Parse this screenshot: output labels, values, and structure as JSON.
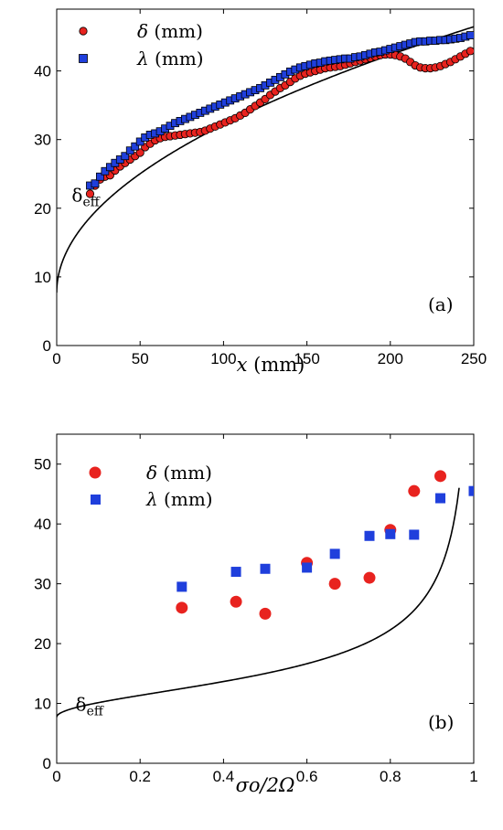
{
  "chart_data": [
    {
      "id": "a",
      "type": "scatter",
      "panel_label": "(a)",
      "xlabel_var": "x",
      "xlabel_unit": " (mm)",
      "ylabel": "",
      "xlim": [
        0,
        250
      ],
      "ylim": [
        0,
        49
      ],
      "xticks": [
        0,
        50,
        100,
        150,
        200,
        250
      ],
      "yticks": [
        0,
        10,
        20,
        30,
        40
      ],
      "grid": false,
      "legend": "top-left",
      "curve_label": {
        "main": "δ",
        "sub": "eff",
        "x": 9,
        "y": 21
      },
      "curve": {
        "name": "",
        "color": "#000000",
        "a": 7.7,
        "b": 2.45
      },
      "series": [
        {
          "name_sym": "δ",
          "name_unit": " (mm)",
          "marker": "circle",
          "color": "#e8231f",
          "x": [
            20,
            23,
            26,
            29,
            32,
            35,
            38,
            41,
            44,
            47,
            50,
            53,
            56,
            59,
            62,
            65,
            68,
            71,
            74,
            77,
            80,
            83,
            86,
            89,
            92,
            95,
            98,
            101,
            104,
            107,
            110,
            113,
            116,
            119,
            122,
            125,
            128,
            131,
            134,
            137,
            140,
            143,
            146,
            149,
            152,
            155,
            158,
            161,
            164,
            167,
            170,
            173,
            176,
            179,
            182,
            185,
            188,
            191,
            194,
            197,
            200,
            203,
            206,
            209,
            212,
            215,
            218,
            221,
            224,
            227,
            230,
            233,
            236,
            239,
            242,
            245,
            248
          ],
          "y": [
            22.1,
            23.3,
            24.2,
            24.6,
            24.8,
            25.5,
            26.1,
            26.6,
            27.1,
            27.6,
            28.1,
            28.9,
            29.4,
            29.9,
            30.2,
            30.4,
            30.5,
            30.6,
            30.7,
            30.8,
            30.9,
            31.0,
            31.1,
            31.3,
            31.6,
            31.9,
            32.2,
            32.5,
            32.8,
            33.1,
            33.5,
            33.9,
            34.4,
            34.9,
            35.4,
            35.9,
            36.5,
            37.0,
            37.5,
            37.9,
            38.4,
            38.9,
            39.3,
            39.6,
            39.8,
            40.0,
            40.2,
            40.4,
            40.5,
            40.6,
            40.7,
            40.9,
            41.1,
            41.3,
            41.5,
            41.7,
            41.9,
            42.1,
            42.3,
            42.4,
            42.4,
            42.3,
            42.1,
            41.8,
            41.3,
            40.8,
            40.5,
            40.4,
            40.4,
            40.5,
            40.7,
            41.0,
            41.3,
            41.7,
            42.1,
            42.5,
            42.9
          ]
        },
        {
          "name_sym": "λ",
          "name_unit": " (mm)",
          "marker": "square",
          "color": "#1f3fdc",
          "x": [
            20,
            23,
            26,
            29,
            32,
            35,
            38,
            41,
            44,
            47,
            50,
            53,
            56,
            59,
            62,
            65,
            68,
            71,
            74,
            77,
            80,
            83,
            86,
            89,
            92,
            95,
            98,
            101,
            104,
            107,
            110,
            113,
            116,
            119,
            122,
            125,
            128,
            131,
            134,
            137,
            140,
            143,
            146,
            149,
            152,
            155,
            158,
            161,
            164,
            167,
            170,
            173,
            176,
            179,
            182,
            185,
            188,
            191,
            194,
            197,
            200,
            203,
            206,
            209,
            212,
            215,
            218,
            221,
            224,
            227,
            230,
            233,
            236,
            239,
            242,
            245,
            248
          ],
          "y": [
            23.3,
            23.6,
            24.6,
            25.4,
            26.0,
            26.6,
            27.1,
            27.6,
            28.4,
            29.0,
            29.7,
            30.3,
            30.7,
            30.9,
            31.2,
            31.6,
            32.0,
            32.4,
            32.7,
            33.0,
            33.3,
            33.6,
            33.9,
            34.2,
            34.5,
            34.8,
            35.1,
            35.4,
            35.7,
            36.0,
            36.3,
            36.6,
            36.9,
            37.2,
            37.5,
            37.9,
            38.3,
            38.7,
            39.1,
            39.5,
            39.9,
            40.2,
            40.5,
            40.7,
            40.9,
            41.1,
            41.2,
            41.4,
            41.5,
            41.6,
            41.7,
            41.8,
            41.8,
            42.0,
            42.1,
            42.3,
            42.5,
            42.7,
            42.8,
            43.0,
            43.2,
            43.4,
            43.6,
            43.8,
            44.0,
            44.2,
            44.3,
            44.3,
            44.4,
            44.4,
            44.5,
            44.5,
            44.6,
            44.7,
            44.8,
            45.0,
            45.2
          ]
        }
      ]
    },
    {
      "id": "b",
      "type": "scatter",
      "panel_label": "(b)",
      "xlabel": "σo/2Ω",
      "ylabel": "",
      "xlim": [
        0,
        1
      ],
      "ylim": [
        0,
        55
      ],
      "xticks": [
        0,
        0.2,
        0.4,
        0.6,
        0.8,
        1
      ],
      "xtick_labels": [
        "0",
        "0.2",
        "0.4",
        "0.6",
        "0.8",
        "1"
      ],
      "yticks": [
        0,
        10,
        20,
        30,
        40,
        50
      ],
      "grid": false,
      "legend": "top-left",
      "curve_label": {
        "main": "δ",
        "sub": "eff",
        "x": 0.045,
        "y": 8.8
      },
      "curve": {
        "name": "",
        "color": "#000000",
        "a": 7.7,
        "b": 7.3,
        "xmax": 0.965
      },
      "series": [
        {
          "name_sym": "δ",
          "name_unit": " (mm)",
          "marker": "circle",
          "color": "#e8231f",
          "x": [
            0.3,
            0.43,
            0.5,
            0.6,
            0.667,
            0.75,
            0.8,
            0.857,
            0.92
          ],
          "y": [
            26,
            27,
            25,
            33.5,
            30,
            31,
            39,
            45.5,
            48
          ]
        },
        {
          "name_sym": "λ",
          "name_unit": " (mm)",
          "marker": "square",
          "color": "#1f3fdc",
          "x": [
            0.3,
            0.43,
            0.5,
            0.6,
            0.667,
            0.75,
            0.8,
            0.857,
            0.92,
            1.0
          ],
          "y": [
            29.5,
            32,
            32.5,
            32.7,
            35,
            38,
            38.3,
            38.2,
            44.3,
            45.5
          ]
        }
      ]
    }
  ]
}
